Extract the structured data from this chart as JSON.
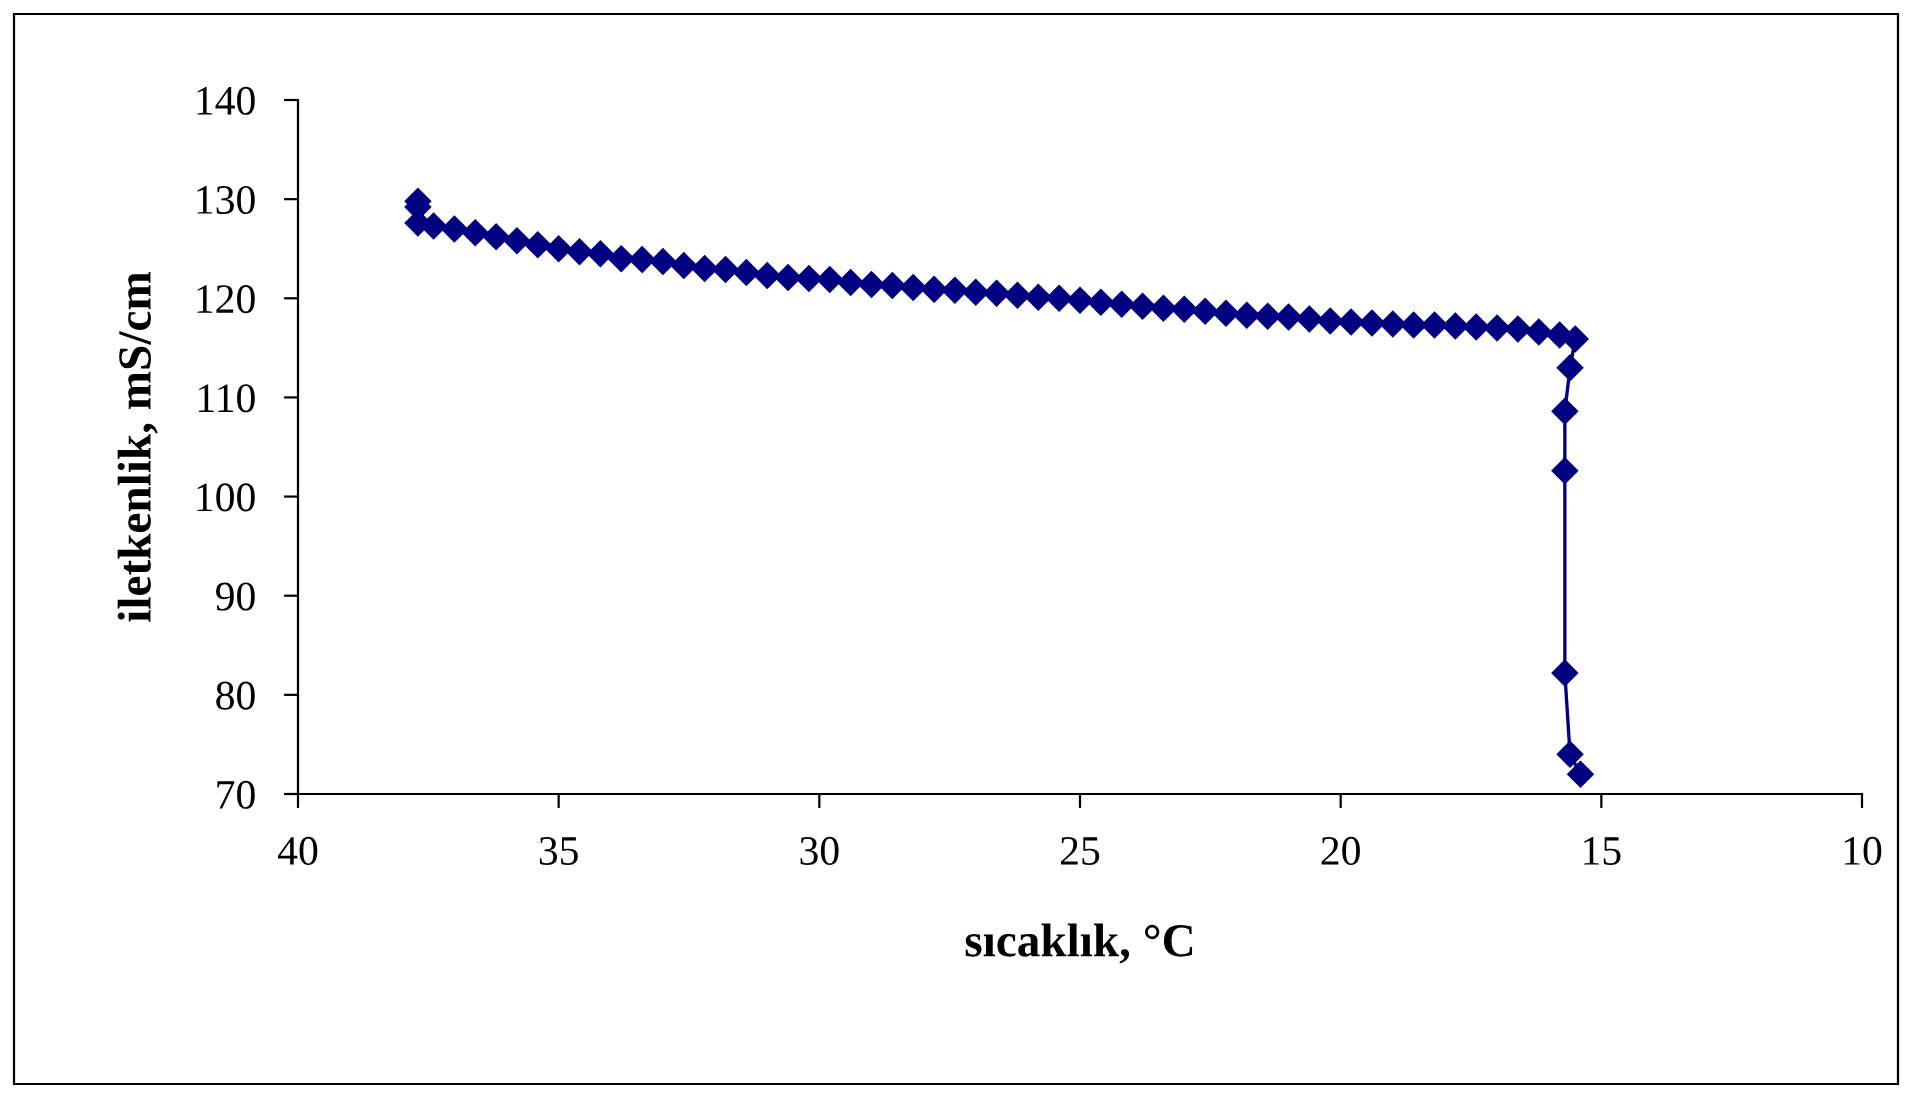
{
  "chart_data": {
    "type": "line",
    "xlabel": "sıcaklık, °C",
    "ylabel": "iletkenlik, mS/cm",
    "xlim": [
      40,
      10
    ],
    "xticks": [
      40,
      35,
      30,
      25,
      20,
      15,
      10
    ],
    "ylim": [
      70,
      140
    ],
    "yticks": [
      70,
      80,
      90,
      100,
      110,
      120,
      130,
      140
    ],
    "marker": "diamond",
    "line_style": "solid",
    "grid": false,
    "legend": false,
    "series": [
      {
        "color": "#000080",
        "x": [
          37.7,
          37.7,
          37.7,
          37.4,
          37.0,
          36.6,
          36.2,
          35.8,
          35.4,
          35.0,
          34.6,
          34.2,
          33.8,
          33.4,
          33.0,
          32.6,
          32.2,
          31.8,
          31.4,
          31.0,
          30.6,
          30.2,
          29.8,
          29.4,
          29.0,
          28.6,
          28.2,
          27.8,
          27.4,
          27.0,
          26.6,
          26.2,
          25.8,
          25.4,
          25.0,
          24.6,
          24.2,
          23.8,
          23.4,
          23.0,
          22.6,
          22.2,
          21.8,
          21.4,
          21.0,
          20.6,
          20.2,
          19.8,
          19.4,
          19.0,
          18.6,
          18.2,
          17.8,
          17.4,
          17.0,
          16.6,
          16.2,
          15.8,
          15.5,
          15.6,
          15.7,
          15.7,
          15.7,
          15.6,
          15.4
        ],
        "values": [
          129.8,
          129.2,
          127.6,
          127.3,
          127.0,
          126.6,
          126.2,
          125.8,
          125.4,
          125.0,
          124.7,
          124.5,
          124.0,
          123.9,
          123.7,
          123.3,
          123.0,
          122.9,
          122.6,
          122.3,
          122.1,
          122.0,
          121.9,
          121.6,
          121.4,
          121.3,
          121.1,
          120.9,
          120.8,
          120.6,
          120.5,
          120.3,
          120.1,
          120.0,
          119.8,
          119.6,
          119.4,
          119.2,
          119.0,
          118.9,
          118.7,
          118.5,
          118.3,
          118.2,
          118.1,
          117.9,
          117.7,
          117.6,
          117.5,
          117.4,
          117.3,
          117.3,
          117.2,
          117.1,
          117.0,
          116.9,
          116.6,
          116.3,
          115.9,
          113.0,
          108.6,
          102.6,
          82.2,
          74.0,
          72.0
        ]
      }
    ]
  }
}
